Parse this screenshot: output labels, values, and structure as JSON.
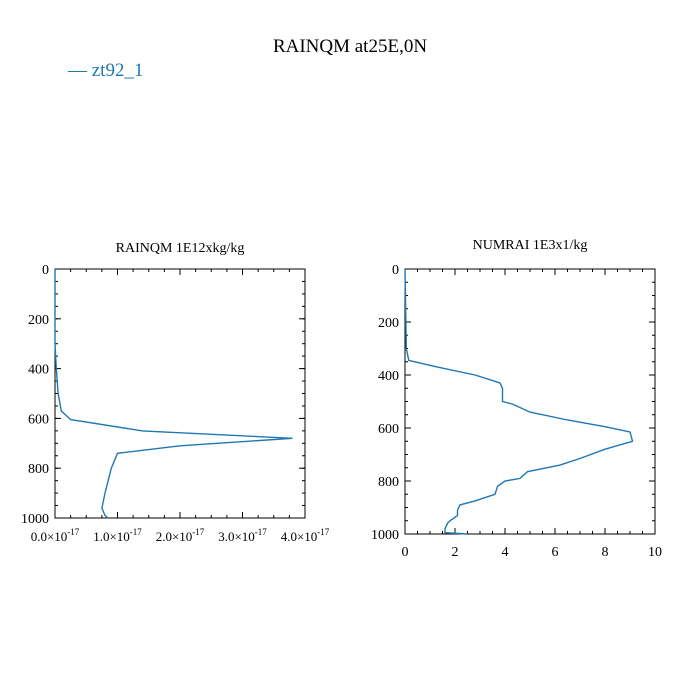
{
  "title": "RAINQM at25E,0N",
  "legend": {
    "label": "zt92_1",
    "color": "#1f77b4"
  },
  "chart_data": [
    {
      "type": "line",
      "title": "RAINQM  1E12xkg/kg",
      "xlim": [
        0,
        4e-17
      ],
      "ylim": [
        1000,
        0
      ],
      "x_ticks": [
        0,
        1e-17,
        2e-17,
        3e-17,
        4e-17
      ],
      "x_tick_labels": [
        {
          "mant": "0.0",
          "exp": "-17"
        },
        {
          "mant": "1.0",
          "exp": "-17"
        },
        {
          "mant": "2.0",
          "exp": "-17"
        },
        {
          "mant": "3.0",
          "exp": "-17"
        },
        {
          "mant": "4.0",
          "exp": "-17"
        }
      ],
      "y_ticks": [
        0,
        200,
        400,
        600,
        800,
        1000
      ],
      "y_tick_labels": [
        "0",
        "200",
        "400",
        "600",
        "800",
        "1000"
      ],
      "series": [
        {
          "name": "zt92_1",
          "color": "#1f77b4",
          "points": [
            [
              0.0,
              0
            ],
            [
              0.0,
              300
            ],
            [
              2e-19,
              400
            ],
            [
              5e-19,
              500
            ],
            [
              1e-18,
              570
            ],
            [
              2.5e-18,
              605
            ],
            [
              1.4e-17,
              650
            ],
            [
              3.8e-17,
              680
            ],
            [
              2e-17,
              710
            ],
            [
              1e-17,
              740
            ],
            [
              9e-18,
              800
            ],
            [
              8e-18,
              900
            ],
            [
              7.5e-18,
              960
            ],
            [
              8e-18,
              990
            ],
            [
              8.5e-18,
              1000
            ]
          ]
        }
      ]
    },
    {
      "type": "line",
      "title": "NUMRAI  1E3x1/kg",
      "xlim": [
        0,
        10
      ],
      "ylim": [
        1000,
        0
      ],
      "x_ticks": [
        0,
        2,
        4,
        6,
        8,
        10
      ],
      "x_tick_labels": [
        "0",
        "2",
        "4",
        "6",
        "8",
        "10"
      ],
      "y_ticks": [
        0,
        200,
        400,
        600,
        800,
        1000
      ],
      "y_tick_labels": [
        "0",
        "200",
        "400",
        "600",
        "800",
        "1000"
      ],
      "series": [
        {
          "name": "zt92_1",
          "color": "#1f77b4",
          "points": [
            [
              0,
              0
            ],
            [
              0.05,
              300
            ],
            [
              0.15,
              345
            ],
            [
              1.3,
              370
            ],
            [
              2.8,
              400
            ],
            [
              3.8,
              430
            ],
            [
              3.9,
              450
            ],
            [
              3.9,
              500
            ],
            [
              4.3,
              510
            ],
            [
              5.0,
              540
            ],
            [
              6.5,
              570
            ],
            [
              8.0,
              595
            ],
            [
              9.0,
              615
            ],
            [
              9.1,
              650
            ],
            [
              8.0,
              680
            ],
            [
              7.0,
              715
            ],
            [
              6.2,
              740
            ],
            [
              4.9,
              765
            ],
            [
              4.6,
              790
            ],
            [
              4.0,
              800
            ],
            [
              3.7,
              820
            ],
            [
              3.6,
              850
            ],
            [
              2.8,
              875
            ],
            [
              2.2,
              890
            ],
            [
              2.1,
              910
            ],
            [
              2.1,
              930
            ],
            [
              1.8,
              950
            ],
            [
              1.7,
              960
            ],
            [
              1.6,
              980
            ],
            [
              1.6,
              995
            ],
            [
              2.5,
              1000
            ]
          ]
        }
      ]
    }
  ]
}
